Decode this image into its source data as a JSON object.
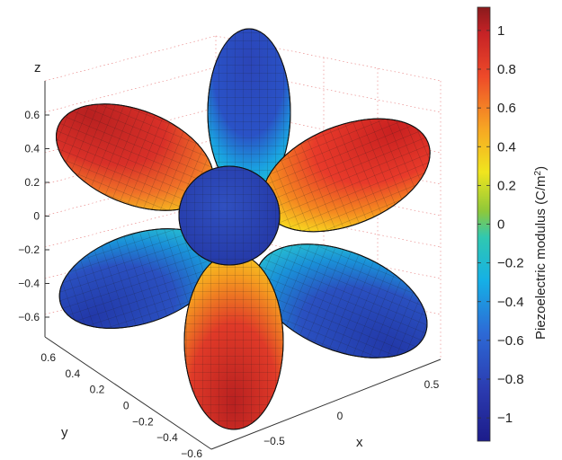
{
  "chart_data": {
    "type": "surface3d",
    "description_visible": "3D polar surface of piezoelectric modulus with six lobes and a central sphere",
    "axes": {
      "x": {
        "label": "x",
        "ticks": [
          "-0.5",
          "0",
          "0.5"
        ]
      },
      "y": {
        "label": "y",
        "ticks": [
          "0.6",
          "0.4",
          "0.2",
          "0",
          "-0.2",
          "-0.4",
          "-0.6"
        ]
      },
      "z": {
        "label": "z",
        "ticks": [
          "0.6",
          "0.4",
          "0.2",
          "0",
          "-0.2",
          "-0.4",
          "-0.6"
        ]
      }
    },
    "lobes": [
      {
        "name": "top",
        "value": -1.1
      },
      {
        "name": "upper-left",
        "value": 0.95
      },
      {
        "name": "upper-right",
        "value": 1.0
      },
      {
        "name": "lower-left",
        "value": -0.9
      },
      {
        "name": "lower-right",
        "value": -0.9
      },
      {
        "name": "bottom",
        "value": 1.0
      },
      {
        "name": "center",
        "value": -0.95
      }
    ],
    "colorbar": {
      "label_main": "Piezoelectric modulus (C/m",
      "label_sup": "2",
      "label_end": ")",
      "range": [
        -1.12,
        1.12
      ],
      "ticks": [
        "1",
        "0.8",
        "0.6",
        "0.4",
        "0.2",
        "0",
        "−0.2",
        "−0.4",
        "−0.6",
        "−0.8",
        "−1"
      ],
      "tick_values": [
        1,
        0.8,
        0.6,
        0.4,
        0.2,
        0,
        -0.2,
        -0.4,
        -0.6,
        -0.8,
        -1
      ],
      "colormap": "jet"
    }
  }
}
